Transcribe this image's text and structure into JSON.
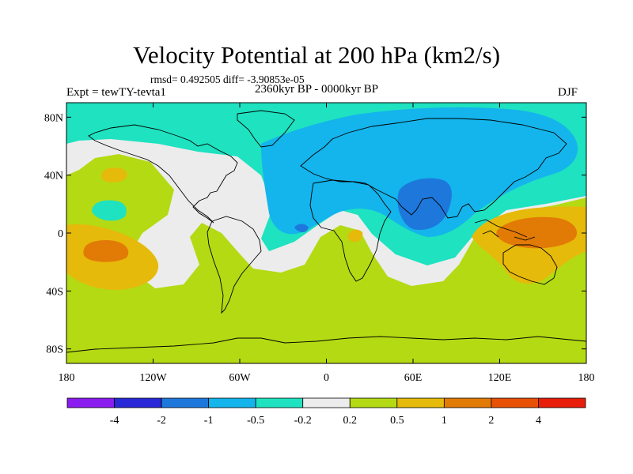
{
  "title": "Velocity Potential at 200 hPa (km2/s)",
  "stats": "rmsd= 0.492505 diff= -3.90853e-05",
  "left_label": "Expt = tewTY-tevta1",
  "center_label": "2360kyr BP - 0000kyr BP",
  "right_label": "DJF",
  "axes": {
    "x_ticks": [
      "180",
      "120W",
      "60W",
      "0",
      "60E",
      "120E",
      "180"
    ],
    "y_ticks": [
      "80N",
      "40N",
      "0",
      "40S",
      "80S"
    ]
  },
  "colorbar": {
    "labels": [
      "-4",
      "-2",
      "-1",
      "-0.5",
      "-0.2",
      "0.2",
      "0.5",
      "1",
      "2",
      "4"
    ],
    "colors": [
      "#8a1cf0",
      "#2828d8",
      "#1e78dc",
      "#14b4ec",
      "#1ee2c0",
      "#ececec",
      "#b4da14",
      "#e6ba0a",
      "#e27a06",
      "#e85006",
      "#e81e0a"
    ]
  },
  "palette": {
    "background_field": "#b4da14",
    "near_zero": "#ececec",
    "teal": "#1ee2c0",
    "light_blue": "#14b4ec",
    "blue": "#1e78dc",
    "yellow": "#e6ba0a",
    "orange": "#e27a06",
    "coastline": "#000000"
  }
}
